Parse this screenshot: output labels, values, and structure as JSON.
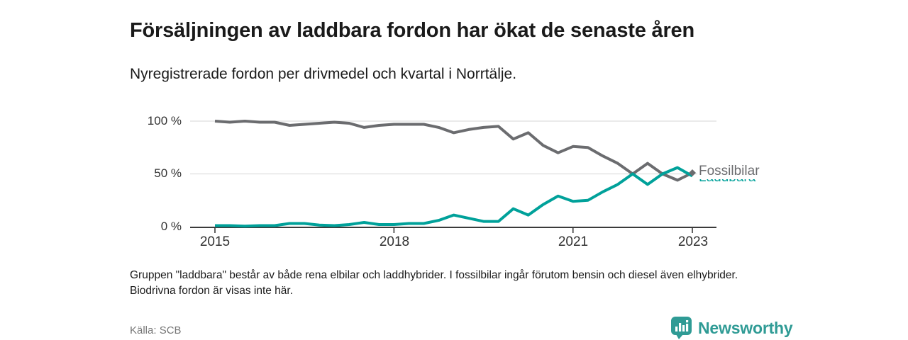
{
  "header": {
    "title": "Försäljningen av laddbara fordon har ökat de senaste åren",
    "subtitle": "Nyregistrerade fordon per drivmedel och kvartal i Norrtälje."
  },
  "chart": {
    "y_axis": {
      "labels": [
        {
          "text": "100 %",
          "value": 100
        },
        {
          "text": "50 %",
          "value": 50
        },
        {
          "text": "0 %",
          "value": 0
        }
      ]
    },
    "x_axis": {
      "ticks": [
        {
          "label": "2015",
          "q": 0
        },
        {
          "label": "2018",
          "q": 12
        },
        {
          "label": "2021",
          "q": 24
        },
        {
          "label": "2023",
          "q": 32
        }
      ]
    },
    "series_labels": {
      "fossil": "Fossilbilar",
      "ladd": "Laddbara"
    },
    "colors": {
      "fossil": "#6b6c6f",
      "ladd": "#00a19a",
      "grid": "#dedede",
      "axis": "#3b3b3b",
      "brand_teal": "#2f9b95"
    }
  },
  "chart_data": {
    "type": "line",
    "title": "Försäljningen av laddbara fordon har ökat de senaste åren",
    "subtitle": "Nyregistrerade fordon per drivmedel och kvartal i Norrtälje.",
    "xlabel": "",
    "ylabel": "",
    "ylim": [
      0,
      100
    ],
    "yticks": [
      0,
      50,
      100
    ],
    "ytick_format": "percent",
    "grid": true,
    "legend_position": "end-of-line",
    "x": [
      "2015-Q1",
      "2015-Q2",
      "2015-Q3",
      "2015-Q4",
      "2016-Q1",
      "2016-Q2",
      "2016-Q3",
      "2016-Q4",
      "2017-Q1",
      "2017-Q2",
      "2017-Q3",
      "2017-Q4",
      "2018-Q1",
      "2018-Q2",
      "2018-Q3",
      "2018-Q4",
      "2019-Q1",
      "2019-Q2",
      "2019-Q3",
      "2019-Q4",
      "2020-Q1",
      "2020-Q2",
      "2020-Q3",
      "2020-Q4",
      "2021-Q1",
      "2021-Q2",
      "2021-Q3",
      "2021-Q4",
      "2022-Q1",
      "2022-Q2",
      "2022-Q3",
      "2022-Q4",
      "2023-Q1"
    ],
    "series": [
      {
        "name": "Fossilbilar",
        "color": "#6b6c6f",
        "values": [
          100,
          99,
          100,
          99,
          99,
          96,
          97,
          98,
          99,
          98,
          94,
          96,
          97,
          97,
          97,
          94,
          89,
          92,
          94,
          95,
          83,
          89,
          77,
          70,
          76,
          75,
          67,
          60,
          50,
          60,
          50,
          44,
          51
        ]
      },
      {
        "name": "Laddbara",
        "color": "#00a19a",
        "values": [
          1,
          1,
          0.5,
          1,
          1,
          3,
          3,
          1.5,
          1,
          2,
          4,
          2,
          2,
          3,
          3,
          6,
          11,
          8,
          5,
          5,
          17,
          11,
          21,
          29,
          24,
          25,
          33,
          40,
          50,
          40,
          50,
          56,
          48
        ]
      }
    ]
  },
  "footer": {
    "note": "Gruppen \"laddbara\" består av både rena elbilar och laddhybrider. I fossilbilar ingår förutom bensin och diesel även elhybrider. Biodrivna fordon är visas inte här.",
    "source": "Källa: SCB",
    "brand": "Newsworthy"
  }
}
